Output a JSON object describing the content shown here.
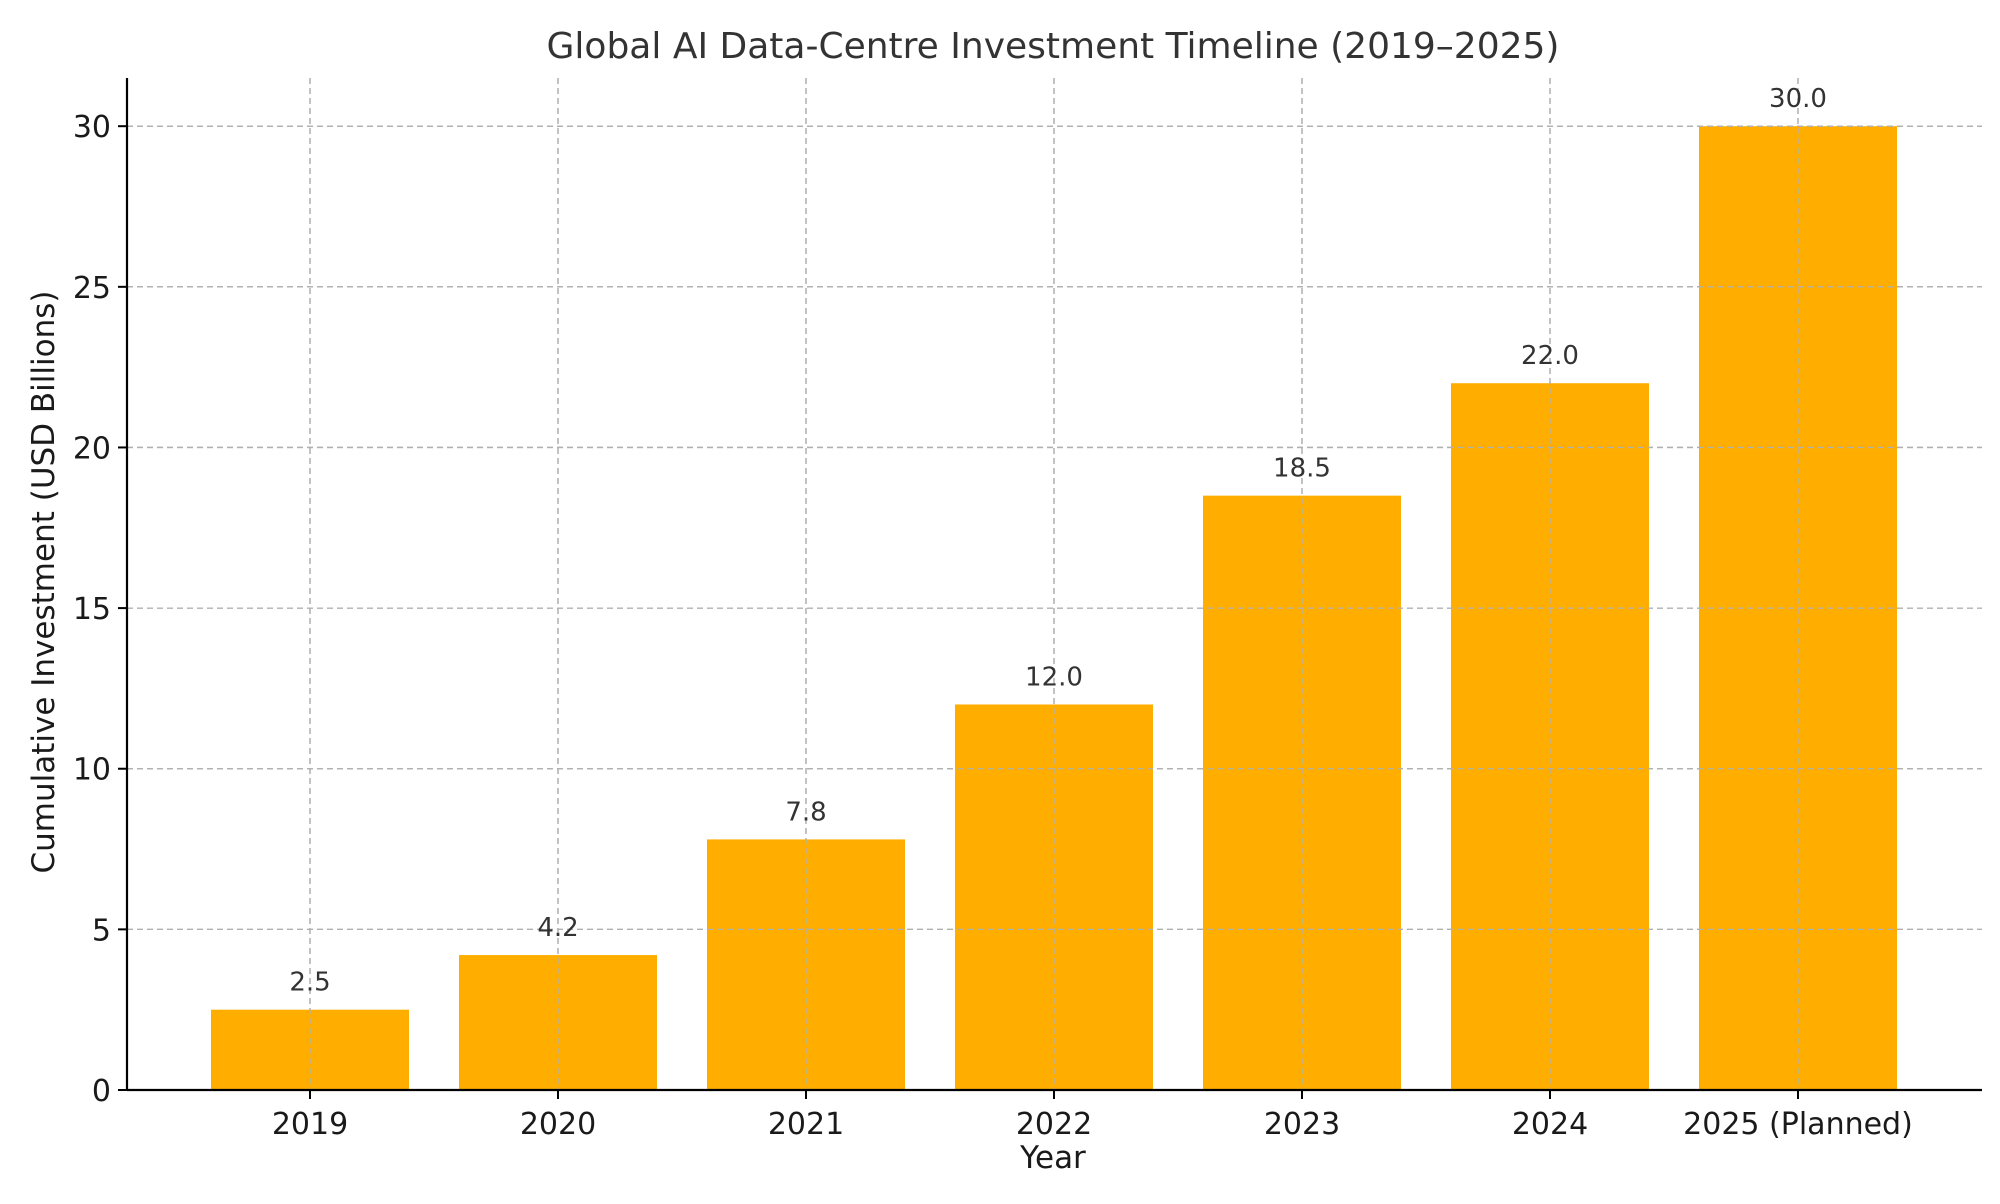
{
  "chart_data": {
    "type": "bar",
    "title": "Global AI Data-Centre Investment Timeline (2019–2025)",
    "xlabel": "Year",
    "ylabel": "Cumulative Investment (USD Billions)",
    "categories": [
      "2019",
      "2020",
      "2021",
      "2022",
      "2023",
      "2024",
      "2025 (Planned)"
    ],
    "values": [
      2.5,
      4.2,
      7.8,
      12.0,
      18.5,
      22.0,
      30.0
    ],
    "data_labels": [
      "2.5",
      "4.2",
      "7.8",
      "12.0",
      "18.5",
      "22.0",
      "30.0"
    ],
    "ylim": [
      0,
      31.5
    ],
    "yticks": [
      0,
      5,
      10,
      15,
      20,
      25,
      30
    ],
    "ytick_labels": [
      "0",
      "5",
      "10",
      "15",
      "20",
      "25",
      "30"
    ],
    "grid": true,
    "legend": "none",
    "bar_color": "#FFAE00"
  }
}
